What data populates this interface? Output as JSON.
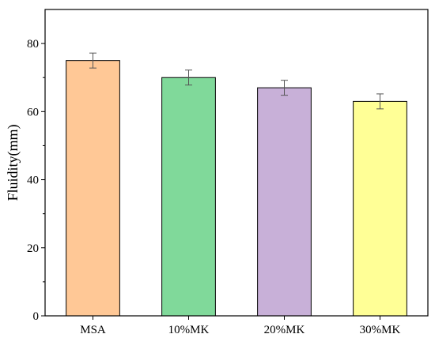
{
  "chart_data": {
    "type": "bar",
    "title": "",
    "xlabel": "",
    "ylabel": "Fluidity(mm)",
    "categories": [
      "MSA",
      "10%MK",
      "20%MK",
      "30%MK"
    ],
    "values": [
      75,
      70,
      67,
      63
    ],
    "errors": [
      2.2,
      2.2,
      2.2,
      2.2
    ],
    "ylim": [
      0,
      90
    ],
    "yticks": [
      0,
      20,
      40,
      60,
      80
    ],
    "ytick_labels": [
      "0",
      "20",
      "40",
      "60",
      "80"
    ],
    "grid": false,
    "legend": "none",
    "colors": [
      "#FFC896",
      "#80D99A",
      "#C8B0D8",
      "#FFFF96"
    ],
    "edge_color": "#000000",
    "error_color": "#555555"
  }
}
